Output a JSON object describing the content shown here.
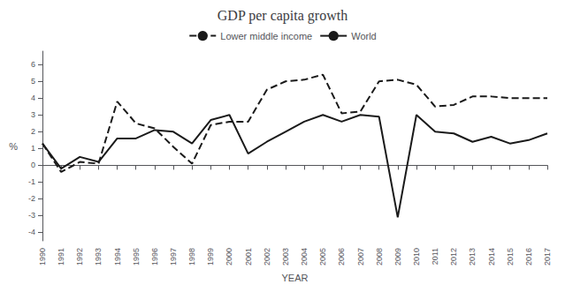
{
  "chart_data": {
    "type": "line",
    "title": "GDP per capita growth",
    "xlabel": "YEAR",
    "ylabel": "%",
    "x": [
      1990,
      1991,
      1992,
      1993,
      1994,
      1995,
      1996,
      1997,
      1998,
      1999,
      2000,
      2001,
      2002,
      2003,
      2004,
      2005,
      2006,
      2007,
      2008,
      2009,
      2010,
      2011,
      2012,
      2013,
      2014,
      2015,
      2016,
      2017
    ],
    "series": [
      {
        "name": "Lower middle income",
        "color": "#1a1a1a",
        "line_style": "dashed",
        "values": [
          1.3,
          -0.4,
          0.2,
          0.1,
          3.8,
          2.5,
          2.2,
          1.1,
          0.1,
          2.4,
          2.6,
          2.6,
          4.5,
          5.0,
          5.1,
          5.4,
          3.1,
          3.2,
          5.0,
          5.1,
          4.8,
          3.5,
          3.6,
          4.1,
          4.1,
          4.0,
          4.0,
          4.0
        ]
      },
      {
        "name": "World",
        "color": "#1a1a1a",
        "line_style": "solid",
        "values": [
          1.3,
          -0.2,
          0.5,
          0.2,
          1.6,
          1.6,
          2.1,
          2.0,
          1.3,
          2.7,
          3.0,
          0.7,
          1.4,
          2.0,
          2.6,
          3.0,
          2.6,
          3.0,
          2.9,
          -3.1,
          3.0,
          2.0,
          1.9,
          1.4,
          1.7,
          1.3,
          1.5,
          1.9
        ]
      }
    ],
    "xlim": [
      1990,
      2017
    ],
    "xticks": [
      1990,
      1991,
      1992,
      1993,
      1994,
      1995,
      1996,
      1997,
      1998,
      1999,
      2000,
      2001,
      2002,
      2003,
      2004,
      2005,
      2006,
      2007,
      2008,
      2009,
      2010,
      2011,
      2012,
      2013,
      2014,
      2015,
      2016,
      2017
    ],
    "ylim": [
      -4.5,
      6.8
    ],
    "yticks": [
      -4,
      -3,
      -2,
      -1,
      0,
      1,
      2,
      3,
      4,
      5,
      6
    ],
    "grid": false,
    "legend": "top"
  }
}
